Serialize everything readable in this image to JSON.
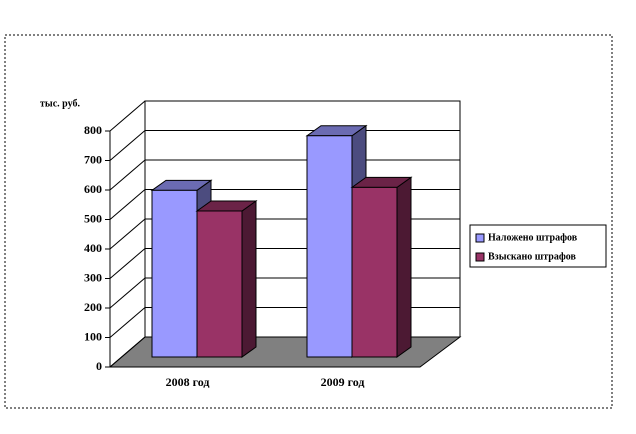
{
  "chart_data": {
    "type": "bar3d",
    "y_label": "тыс. руб.",
    "categories": [
      "2008 год",
      "2009 год"
    ],
    "series": [
      {
        "name": "Наложено штрафов",
        "color": "#9999ff",
        "values": [
          565,
          750
        ]
      },
      {
        "name": "Взыскано штрафов",
        "color": "#993366",
        "values": [
          495,
          575
        ]
      }
    ],
    "ylim": [
      0,
      800
    ],
    "yticks": [
      0,
      100,
      200,
      300,
      400,
      500,
      600,
      700,
      800
    ],
    "grid": true,
    "legend": "right"
  }
}
